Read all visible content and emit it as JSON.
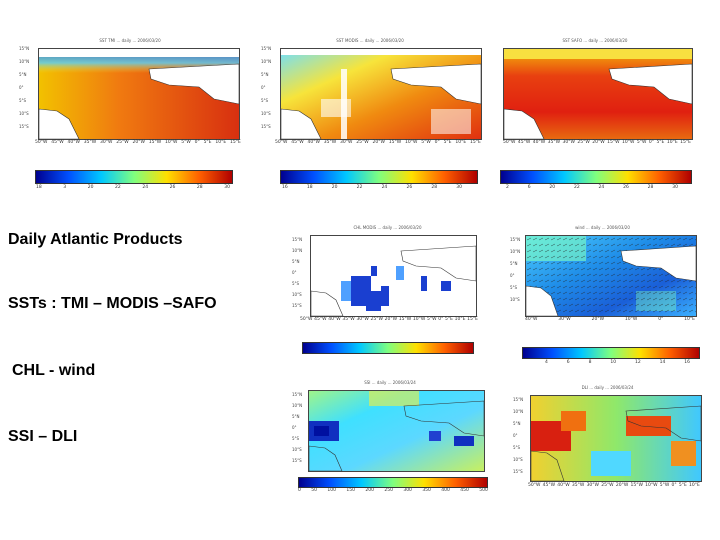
{
  "text": {
    "line1": "Daily Atlantic Products",
    "line2": "SSTs : TMI – MODIS –SAFO",
    "line3": "CHL - wind",
    "line4": "SSI – DLI"
  },
  "panels": [
    {
      "title": "SST TMI ... daily ... 2006/03/20",
      "ylabels": [
        "15°N",
        "10°N",
        "5°N",
        "0°",
        "5°S",
        "10°S",
        "15°S"
      ],
      "xlabels": [
        "50°W",
        "45°W",
        "40°W",
        "35°W",
        "30°W",
        "25°W",
        "20°W",
        "15°W",
        "10°W",
        "5°W",
        "0°",
        "5°E",
        "10°E",
        "15°E"
      ],
      "colorbar_labels": [
        "18",
        "3",
        "20",
        "22",
        "24",
        "26",
        "28",
        "30"
      ]
    },
    {
      "title": "SST MODIS ... daily ... 2006/03/20",
      "ylabels": [
        "15°N",
        "10°N",
        "5°N",
        "0°",
        "5°S",
        "10°S",
        "15°S"
      ],
      "xlabels": [
        "50°W",
        "45°W",
        "40°W",
        "35°W",
        "30°W",
        "25°W",
        "20°W",
        "15°W",
        "10°W",
        "5°W",
        "0°",
        "5°E",
        "10°E",
        "15°E"
      ],
      "colorbar_labels": [
        "16",
        "18",
        "20",
        "22",
        "24",
        "26",
        "28",
        "30"
      ]
    },
    {
      "title": "SST SAFO ... daily ... 2006/03/20",
      "ylabels": [
        "15°N",
        "10°N",
        "5°N",
        "0°",
        "5°S",
        "10°S",
        "15°S"
      ],
      "xlabels": [
        "50°W",
        "45°W",
        "40°W",
        "35°W",
        "30°W",
        "25°W",
        "20°W",
        "15°W",
        "10°W",
        "5°W",
        "0°",
        "5°E",
        "10°E",
        "15°E"
      ],
      "colorbar_labels": [
        "2",
        "6",
        "20",
        "22",
        "24",
        "26",
        "28",
        "30"
      ]
    },
    {
      "title": "CHL MODIS ... daily ... 2006/03/20",
      "ylabels": [
        "15°N",
        "10°N",
        "5°N",
        "0°",
        "5°S",
        "10°S",
        "15°S"
      ],
      "xlabels": [
        "50°W",
        "45°W",
        "40°W",
        "35°W",
        "30°W",
        "25°W",
        "20°W",
        "15°W",
        "10°W",
        "5°W",
        "0°",
        "5°E",
        "10°E",
        "15°E"
      ],
      "colorbar_labels": []
    },
    {
      "title": "wind ... daily ... 2006/03/20",
      "ylabels": [
        "15°N",
        "10°N",
        "5°N",
        "0°",
        "5°S",
        "10°S"
      ],
      "xlabels": [
        "40°W",
        "30°W",
        "20°W",
        "10°W",
        "0°",
        "10°E"
      ],
      "colorbar_labels": [
        "4",
        "6",
        "8",
        "10",
        "12",
        "14",
        "16"
      ]
    },
    {
      "title": "SSI ... daily ... 2006/03/24",
      "ylabels": [
        "15°N",
        "10°N",
        "5°N",
        "0°",
        "5°S",
        "10°S",
        "15°S"
      ],
      "xlabels": [
        "50°W",
        "45°W",
        "40°W",
        "35°W",
        "30°W",
        "25°W",
        "20°W",
        "15°W",
        "10°W",
        "5°W",
        "0°",
        "5°E",
        "10°E"
      ],
      "colorbar_labels": [
        "0",
        "50",
        "100",
        "150",
        "200",
        "250",
        "300",
        "350",
        "400",
        "450",
        "500"
      ]
    },
    {
      "title": "DLI ... daily ... 2006/03/24",
      "ylabels": [
        "15°N",
        "10°N",
        "5°N",
        "0°",
        "5°S",
        "10°S",
        "15°S"
      ],
      "xlabels": [
        "50°W",
        "45°W",
        "40°W",
        "35°W",
        "30°W",
        "25°W",
        "20°W",
        "15°W",
        "10°W",
        "5°W",
        "0°",
        "5°E",
        "10°E"
      ],
      "colorbar_labels": []
    }
  ]
}
